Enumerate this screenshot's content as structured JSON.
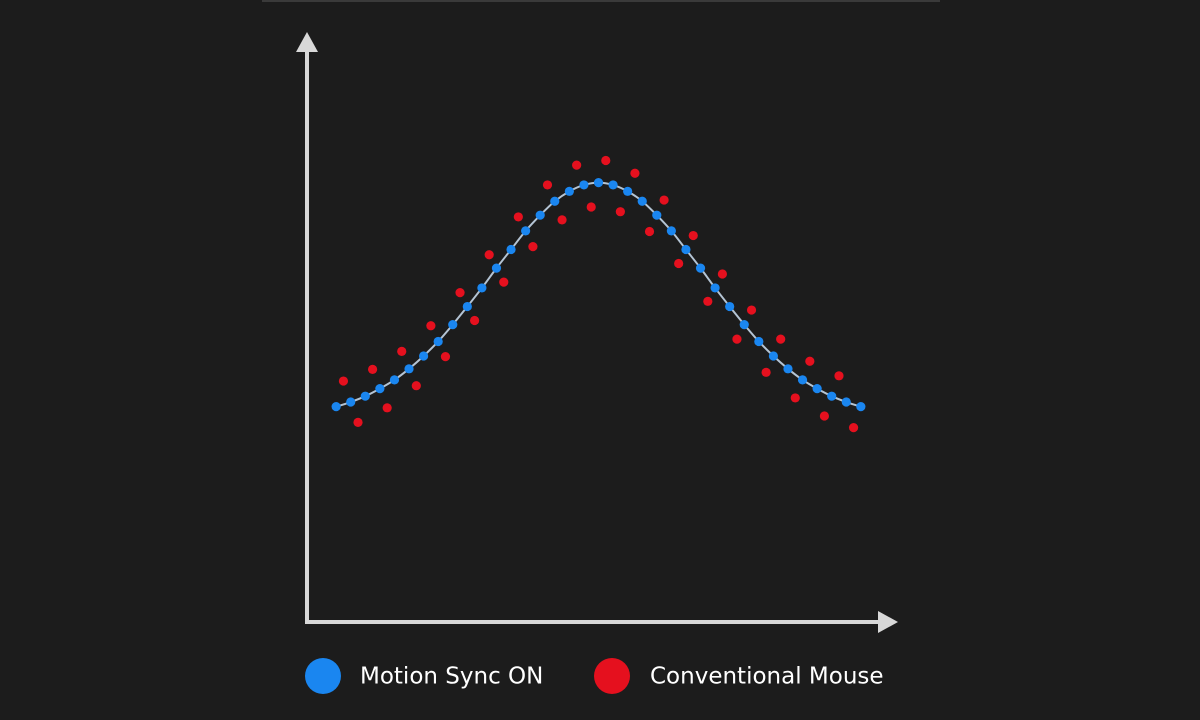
{
  "chart_data": {
    "type": "scatter",
    "xlim": [
      0,
      100
    ],
    "ylim": [
      0,
      100
    ],
    "series": [
      {
        "name": "Motion Sync ON",
        "color": "#1a86f0",
        "line_color": "#b4c4d4",
        "x": [
          5,
          7.5,
          10,
          12.5,
          15,
          17.5,
          20,
          22.5,
          25,
          27.5,
          30,
          32.5,
          35,
          37.5,
          40,
          42.5,
          45,
          47.5,
          50,
          52.5,
          55,
          57.5,
          60,
          62.5,
          65,
          67.5,
          70,
          72.5,
          75,
          77.5,
          80,
          82.5,
          85,
          87.5,
          90,
          92.5,
          95
        ],
        "values": [
          37.0,
          37.8,
          38.8,
          40.1,
          41.6,
          43.5,
          45.7,
          48.2,
          51.1,
          54.2,
          57.4,
          60.8,
          64.0,
          67.2,
          69.9,
          72.3,
          74.0,
          75.1,
          75.5,
          75.1,
          74.0,
          72.3,
          69.9,
          67.2,
          64.0,
          60.8,
          57.4,
          54.2,
          51.1,
          48.2,
          45.7,
          43.5,
          41.6,
          40.1,
          38.8,
          37.8,
          37.0
        ]
      },
      {
        "name": "Conventional Mouse",
        "color": "#e5101e",
        "x": [
          6.25,
          8.75,
          11.25,
          13.75,
          16.25,
          18.75,
          21.25,
          23.75,
          26.25,
          28.75,
          31.25,
          33.75,
          36.25,
          38.75,
          41.25,
          43.75,
          46.25,
          48.75,
          51.25,
          53.75,
          56.25,
          58.75,
          61.25,
          63.75,
          66.25,
          68.75,
          71.25,
          73.75,
          76.25,
          78.75,
          81.25,
          83.75,
          86.25,
          88.75,
          91.25,
          93.75
        ],
        "values": [
          41.4,
          34.3,
          43.4,
          36.8,
          46.5,
          40.6,
          50.9,
          45.6,
          56.6,
          51.8,
          63.1,
          58.4,
          69.6,
          64.5,
          75.1,
          69.1,
          78.5,
          71.3,
          79.3,
          70.5,
          77.1,
          67.1,
          72.5,
          61.6,
          66.4,
          55.1,
          59.8,
          48.6,
          53.6,
          42.9,
          48.6,
          38.5,
          44.8,
          35.4,
          42.3,
          33.4
        ]
      }
    ]
  }
}
